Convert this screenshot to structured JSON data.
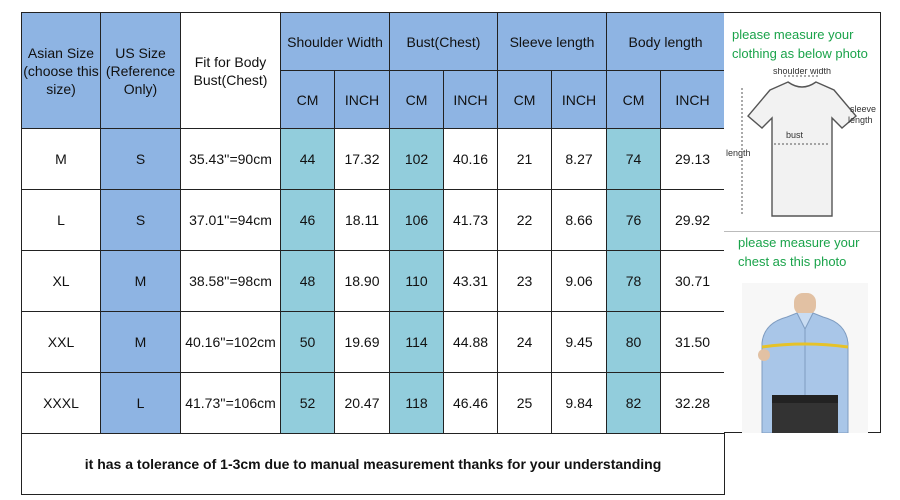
{
  "headers": {
    "asian_size": "Asian Size (choose this size)",
    "us_size": "US Size (Reference Only)",
    "fit": "Fit for Body Bust(Chest)",
    "shoulder": "Shoulder Width",
    "bust": "Bust(Chest)",
    "sleeve": "Sleeve length",
    "body": "Body length",
    "cm": "CM",
    "inch": "INCH"
  },
  "rows": [
    {
      "asian": "M",
      "us": "S",
      "fit": "35.43''=90cm",
      "sh_cm": "44",
      "sh_in": "17.32",
      "bu_cm": "102",
      "bu_in": "40.16",
      "sl_cm": "21",
      "sl_in": "8.27",
      "bo_cm": "74",
      "bo_in": "29.13"
    },
    {
      "asian": "L",
      "us": "S",
      "fit": "37.01''=94cm",
      "sh_cm": "46",
      "sh_in": "18.11",
      "bu_cm": "106",
      "bu_in": "41.73",
      "sl_cm": "22",
      "sl_in": "8.66",
      "bo_cm": "76",
      "bo_in": "29.92"
    },
    {
      "asian": "XL",
      "us": "M",
      "fit": "38.58''=98cm",
      "sh_cm": "48",
      "sh_in": "18.90",
      "bu_cm": "110",
      "bu_in": "43.31",
      "sl_cm": "23",
      "sl_in": "9.06",
      "bo_cm": "78",
      "bo_in": "30.71"
    },
    {
      "asian": "XXL",
      "us": "M",
      "fit": "40.16''=102cm",
      "sh_cm": "50",
      "sh_in": "19.69",
      "bu_cm": "114",
      "bu_in": "44.88",
      "sl_cm": "24",
      "sl_in": "9.45",
      "bo_cm": "80",
      "bo_in": "31.50"
    },
    {
      "asian": "XXXL",
      "us": "L",
      "fit": "41.73''=106cm",
      "sh_cm": "52",
      "sh_in": "20.47",
      "bu_cm": "118",
      "bu_in": "46.46",
      "sl_cm": "25",
      "sl_in": "9.84",
      "bo_cm": "82",
      "bo_in": "32.28"
    }
  ],
  "note": "it has a tolerance of 1-3cm due to manual measurement thanks for your understanding",
  "side": {
    "top_text_1": "please measure your",
    "top_text_2": "clothing as below photo",
    "diagram_labels": {
      "shoulder": "shoulder width",
      "sleeve_1": "sleeve",
      "sleeve_2": "length",
      "bust": "bust",
      "length": "length"
    },
    "bottom_text_1": "please measure your",
    "bottom_text_2": "chest as this photo"
  },
  "colors": {
    "header_blue": "#8eb4e3",
    "teal": "#92cddc",
    "side_text_green": "#1aa34a"
  }
}
